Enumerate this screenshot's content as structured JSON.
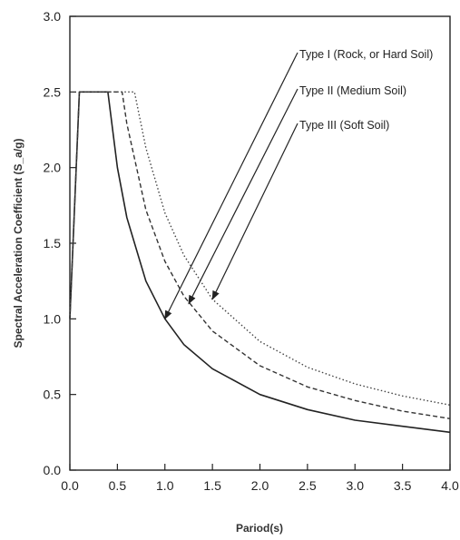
{
  "chart_data": {
    "type": "line",
    "title": "",
    "xlabel": "Pariod(s)",
    "ylabel": "Spectral Acceleration Coefficient (S_a/g)",
    "xlim": [
      0.0,
      4.0
    ],
    "ylim": [
      0.0,
      3.0
    ],
    "grid": false,
    "xticks": [
      "0.0",
      "0.5",
      "1.0",
      "1.5",
      "2.0",
      "2.5",
      "3.0",
      "3.5",
      "4.0"
    ],
    "yticks": [
      "0.0",
      "0.5",
      "1.0",
      "1.5",
      "2.0",
      "2.5",
      "3.0"
    ],
    "series": [
      {
        "name": "Type I (Rock, or Hard Soil)",
        "style": "solid",
        "color": "#222222",
        "x": [
          0.0,
          0.1,
          0.4,
          0.5,
          0.6,
          0.8,
          1.0,
          1.2,
          1.5,
          2.0,
          2.5,
          3.0,
          3.5,
          4.0
        ],
        "y": [
          1.0,
          2.5,
          2.5,
          2.0,
          1.67,
          1.25,
          1.0,
          0.83,
          0.67,
          0.5,
          0.4,
          0.33,
          0.29,
          0.25
        ]
      },
      {
        "name": "Type II (Medium Soil)",
        "style": "dashed",
        "color": "#333333",
        "x": [
          0.0,
          0.1,
          0.55,
          0.6,
          0.8,
          1.0,
          1.2,
          1.5,
          2.0,
          2.5,
          3.0,
          3.5,
          4.0
        ],
        "y": [
          1.0,
          2.5,
          2.5,
          2.29,
          1.72,
          1.38,
          1.15,
          0.92,
          0.69,
          0.55,
          0.46,
          0.39,
          0.34
        ]
      },
      {
        "name": "Type III (Soft Soil)",
        "style": "dotted",
        "color": "#444444",
        "x": [
          0.0,
          0.1,
          0.68,
          0.8,
          1.0,
          1.2,
          1.5,
          2.0,
          2.5,
          3.0,
          3.5,
          4.0
        ],
        "y": [
          1.0,
          2.5,
          2.5,
          2.13,
          1.7,
          1.42,
          1.13,
          0.85,
          0.68,
          0.57,
          0.49,
          0.43
        ]
      }
    ],
    "annotations": [
      {
        "text": "Type I  (Rock, or Hard Soil)",
        "arrow_to": [
          1.0,
          1.0
        ]
      },
      {
        "text": "Type II (Medium Soil)",
        "arrow_to": [
          1.25,
          1.1
        ]
      },
      {
        "text": "Type III (Soft Soil)",
        "arrow_to": [
          1.5,
          1.13
        ]
      }
    ]
  }
}
